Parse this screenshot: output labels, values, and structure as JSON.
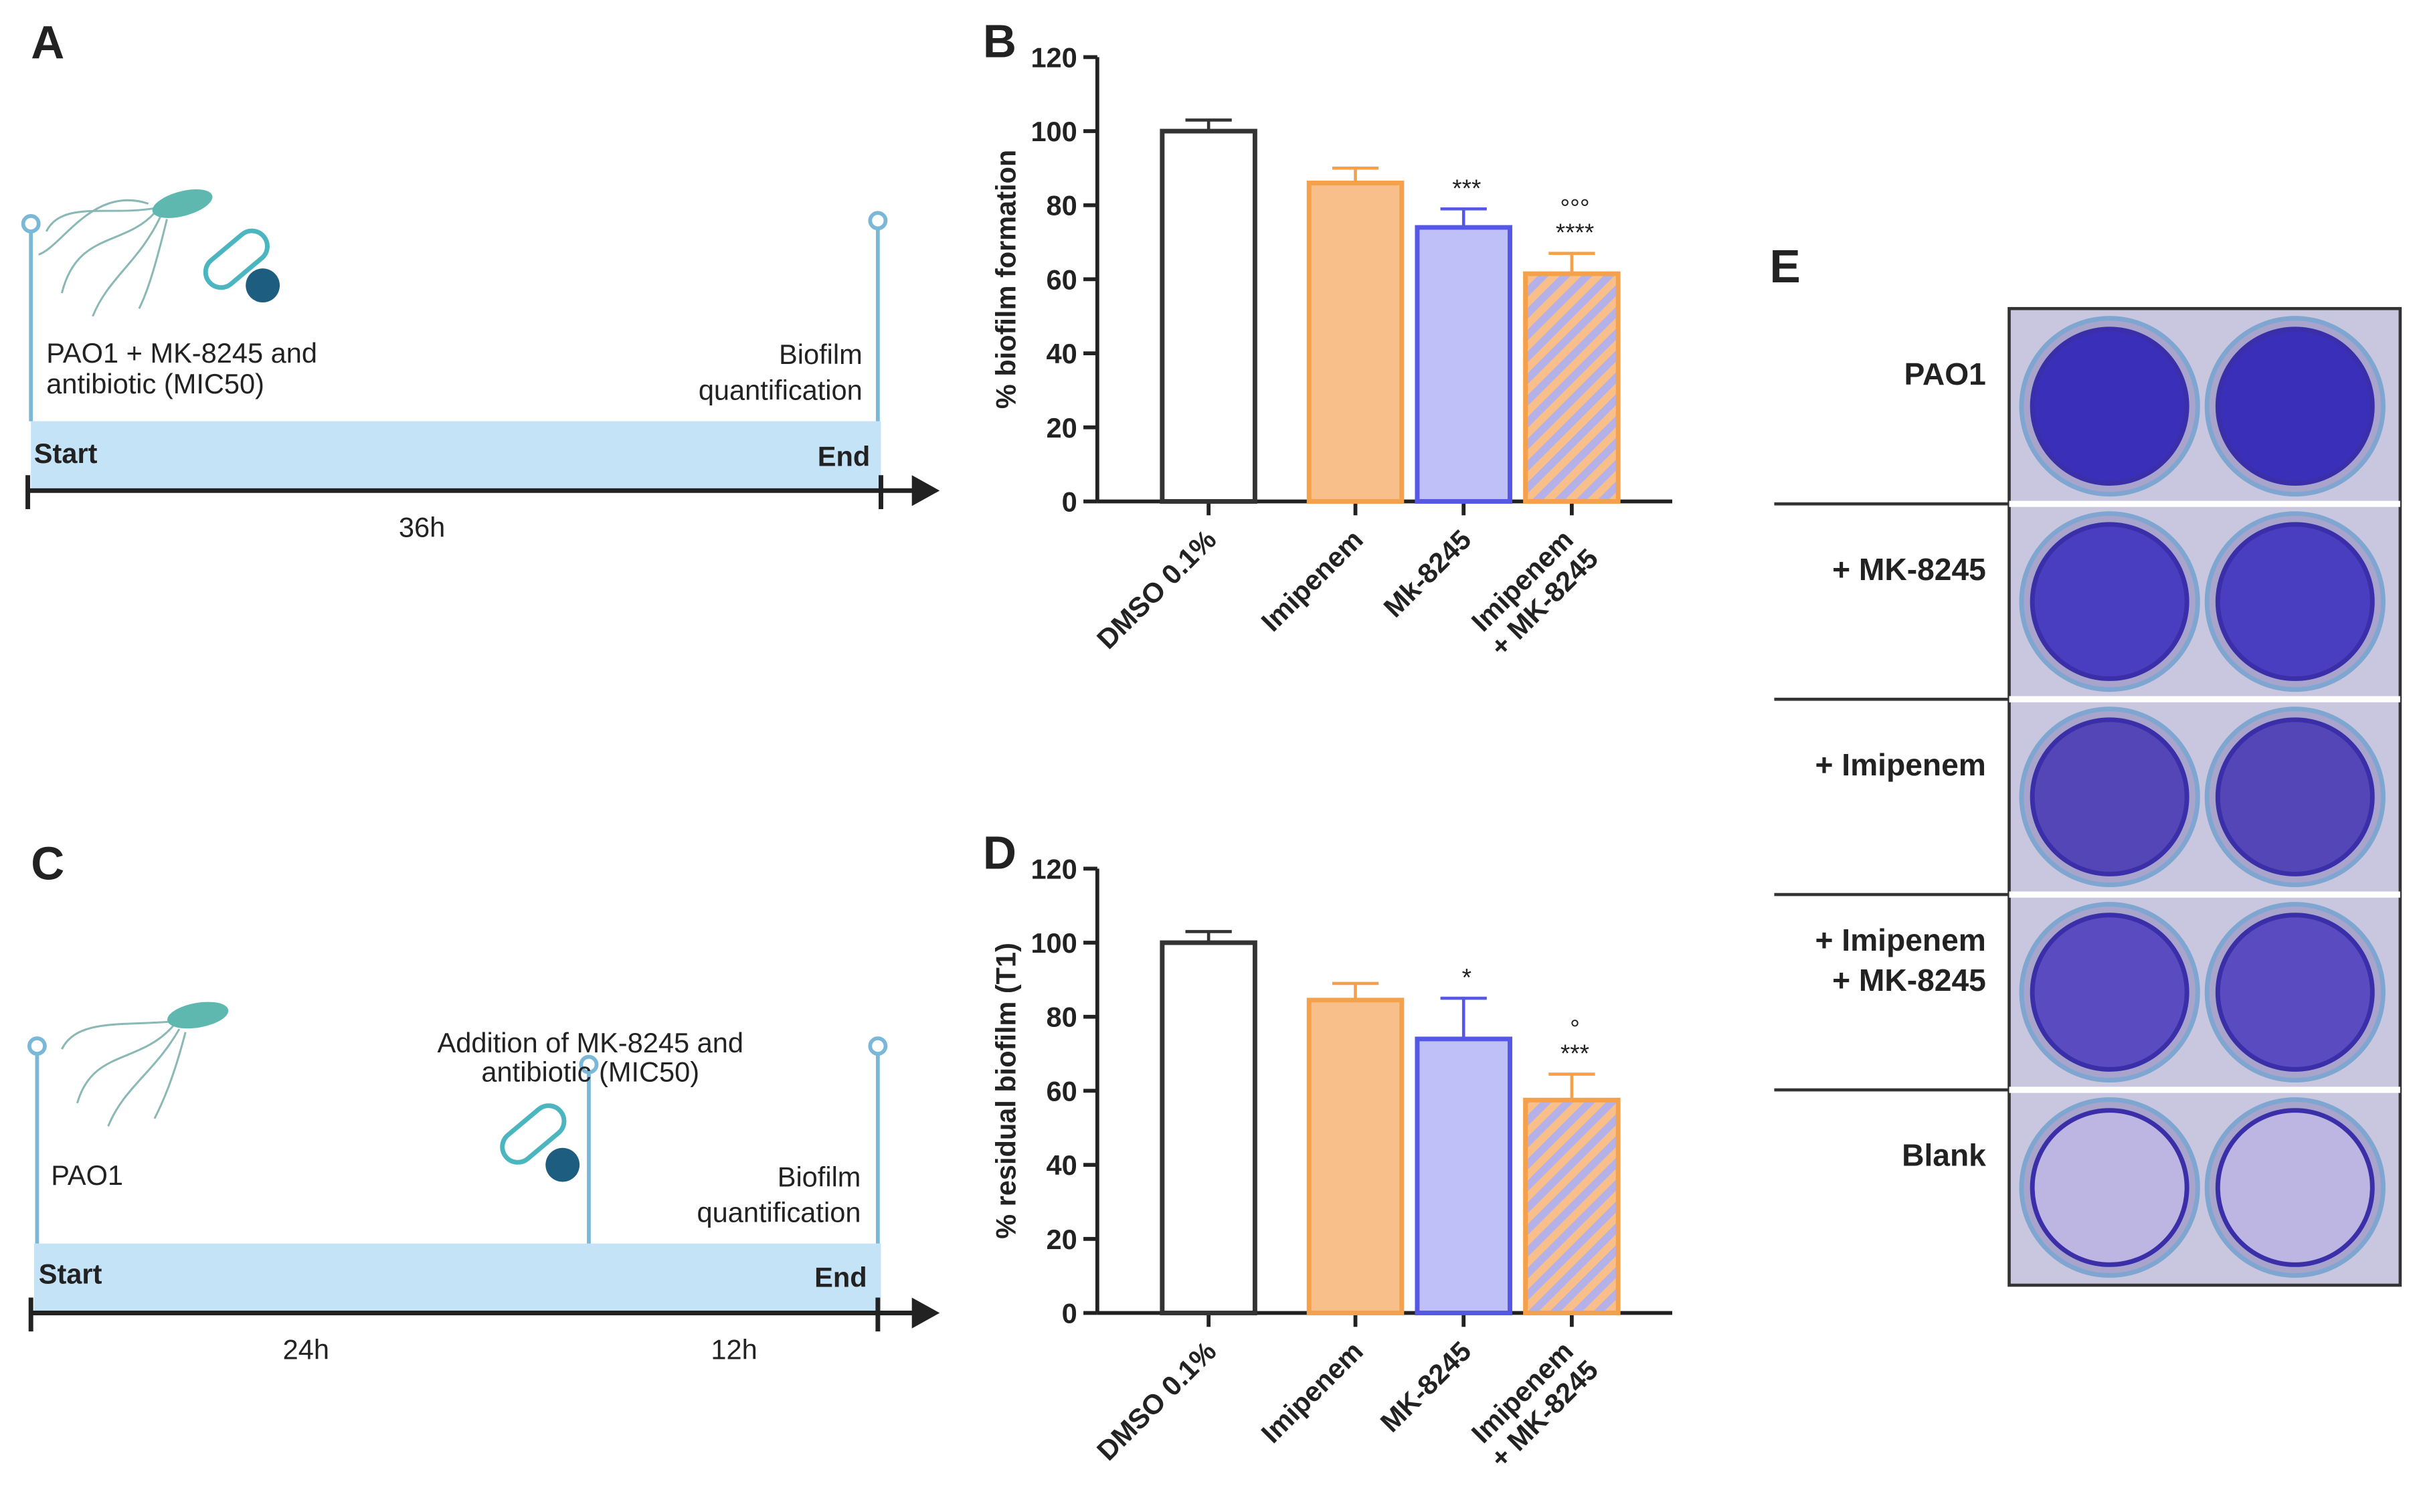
{
  "panel_a": {
    "label": "A",
    "start_text": [
      "PAO1 + MK-8245 and",
      "antibiotic (MIC50)"
    ],
    "end_text": [
      "Biofilm",
      "quantification"
    ],
    "start": "Start",
    "end": "End",
    "durations": [
      "36h"
    ]
  },
  "panel_c": {
    "label": "C",
    "start_text": [
      "PAO1"
    ],
    "middle_text": [
      "Addition of MK-8245 and",
      "antibiotic (MIC50)"
    ],
    "end_text": [
      "Biofilm",
      "quantification"
    ],
    "start": "Start",
    "end": "End",
    "durations": [
      "24h",
      "12h"
    ]
  },
  "panel_e": {
    "label": "E",
    "rows": [
      [
        "PAO1"
      ],
      [
        "+ MK-8245"
      ],
      [
        "+ Imipenem"
      ],
      [
        "+ Imipenem",
        "+ MK-8245"
      ],
      [
        "Blank"
      ]
    ]
  },
  "chart_data": [
    {
      "type": "bar",
      "label": "B",
      "y_label": "% biofilm formation",
      "categories": [
        [
          "DMSO 0.1%"
        ],
        [
          "Imipenem"
        ],
        [
          "Mk-8245"
        ],
        [
          "Imipenem",
          "+ MK-8245"
        ]
      ],
      "values": [
        100,
        86,
        74,
        61.5
      ],
      "errors": [
        3,
        4,
        5,
        5.5
      ],
      "colors": [
        "#ffffff",
        "#f9bf8a",
        "#bfc0f8",
        "#f9bf8a"
      ],
      "edge_colors": [
        "#333333",
        "#f5a04a",
        "#5558e6",
        "#f5a04a"
      ],
      "hatch": [
        false,
        false,
        false,
        true
      ],
      "annotations": [
        [],
        [],
        [
          "***"
        ],
        [
          "°°°",
          "****"
        ]
      ],
      "ylim": [
        0,
        120
      ],
      "yticks": [
        0,
        20,
        40,
        60,
        80,
        100,
        120
      ]
    },
    {
      "type": "bar",
      "label": "D",
      "y_label": "% residual biofilm (T1)",
      "categories": [
        [
          "DMSO 0.1%"
        ],
        [
          "Imipenem"
        ],
        [
          "MK-8245"
        ],
        [
          "Imipenem",
          "+ MK-8245"
        ]
      ],
      "values": [
        100,
        84.5,
        74,
        57.5
      ],
      "errors": [
        3,
        4.5,
        11,
        7
      ],
      "colors": [
        "#ffffff",
        "#f9bf8a",
        "#bfc0f8",
        "#f9bf8a"
      ],
      "edge_colors": [
        "#333333",
        "#f5a04a",
        "#5558e6",
        "#f5a04a"
      ],
      "hatch": [
        false,
        false,
        false,
        true
      ],
      "annotations": [
        [],
        [],
        [
          "*"
        ],
        [
          "°",
          "***"
        ]
      ],
      "ylim": [
        0,
        120
      ],
      "yticks": [
        0,
        20,
        40,
        60,
        80,
        100,
        120
      ]
    }
  ]
}
